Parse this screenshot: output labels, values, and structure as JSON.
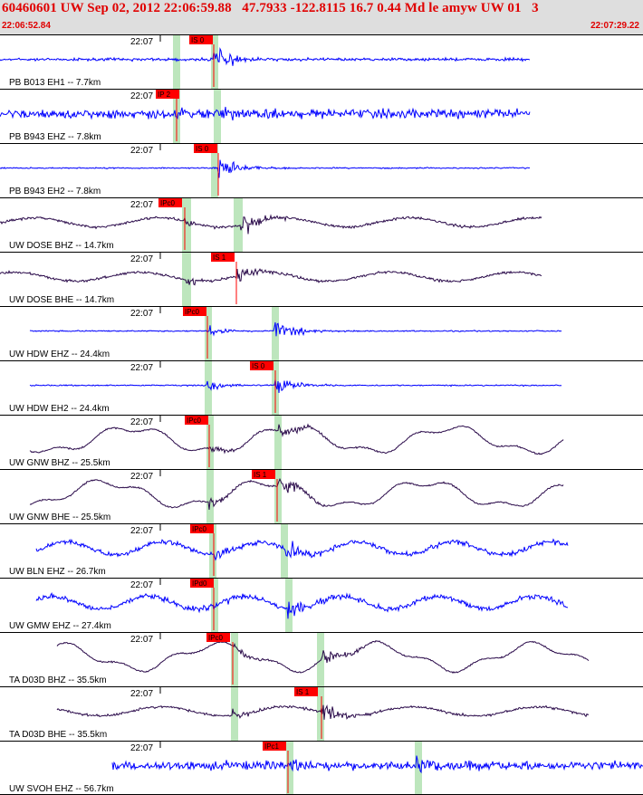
{
  "header": {
    "title": "60460601 UW Sep 02, 2012 22:06:59.88   47.7933 -122.8115 16.7 0.44 Md le amyw UW 01   3",
    "start_time": "22:06:52.84",
    "end_time": "22:07:29.22"
  },
  "colors": {
    "header_text": "#e00000",
    "header_bg": "#dedede",
    "trace_blue": "#0000ff",
    "trace_dark": "#2a0a4a",
    "pick_box": "#ff0000",
    "pick_line": "#ff0000",
    "window_band": "#bde6bd",
    "separator": "#000000"
  },
  "panels": [
    {
      "label": "PB B013 EH1 -- 7.7km",
      "time": "22:07",
      "pick": "IS 0",
      "color": "blue",
      "style": "spiky"
    },
    {
      "label": "PB B943 EHZ -- 7.8km",
      "time": "22:07",
      "pick": "IP 2",
      "color": "blue",
      "style": "noisy"
    },
    {
      "label": "PB B943 EH2 -- 7.8km",
      "time": "22:07",
      "pick": "IS 0",
      "color": "blue",
      "style": "quiet"
    },
    {
      "label": "UW DOSE BHZ -- 14.7km",
      "time": "22:07",
      "pick": "IPc0",
      "color": "dark",
      "style": "wavy"
    },
    {
      "label": "UW DOSE BHE -- 14.7km",
      "time": "22:07",
      "pick": "IS 1",
      "color": "dark",
      "style": "wavy"
    },
    {
      "label": "UW HDW EHZ -- 24.4km",
      "time": "22:07",
      "pick": "IPc0",
      "color": "blue",
      "style": "quiet"
    },
    {
      "label": "UW HDW EH2 -- 24.4km",
      "time": "22:07",
      "pick": "IS 0",
      "color": "blue",
      "style": "quiet"
    },
    {
      "label": "UW GNW BHZ -- 25.5km",
      "time": "22:07",
      "pick": "IPc0",
      "color": "dark",
      "style": "swell"
    },
    {
      "label": "UW GNW BHE -- 25.5km",
      "time": "22:07",
      "pick": "IS 1",
      "color": "dark",
      "style": "swell"
    },
    {
      "label": "UW BLN EHZ -- 26.7km",
      "time": "22:07",
      "pick": "IPc0",
      "color": "blue",
      "style": "wavynoisy"
    },
    {
      "label": "UW GMW EHZ -- 27.4km",
      "time": "22:07",
      "pick": "IPd0",
      "color": "blue",
      "style": "wavynoisy"
    },
    {
      "label": "TA D03D BHZ -- 35.5km",
      "time": "22:07",
      "pick": "IPc0",
      "color": "dark",
      "style": "swell"
    },
    {
      "label": "TA D03D BHE -- 35.5km",
      "time": "22:07",
      "pick": "IS 1",
      "color": "dark",
      "style": "wavy"
    },
    {
      "label": "UW SVOH EHZ -- 56.7km",
      "time": "22:07",
      "pick": "IPc1",
      "color": "blue",
      "style": "noisy"
    }
  ]
}
